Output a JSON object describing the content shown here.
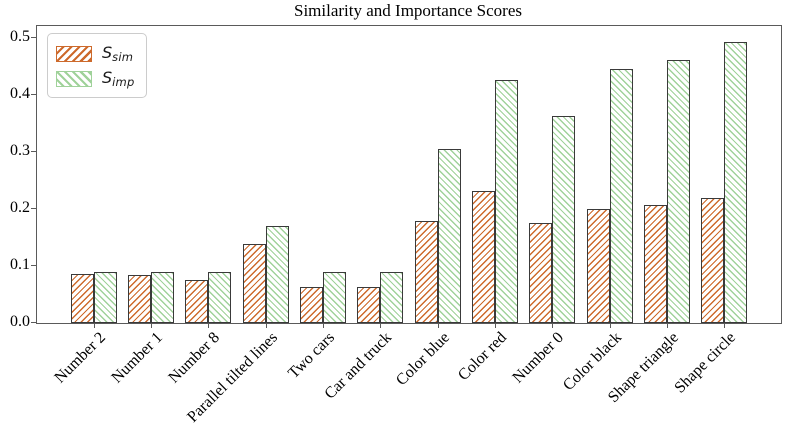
{
  "chart_data": {
    "type": "bar",
    "title": "Similarity and Importance Scores",
    "categories": [
      "Number 2",
      "Number 1",
      "Number 8",
      "Parallel tilted lines",
      "Two cars",
      "Car and truck",
      "Color blue",
      "Color red",
      "Number 0",
      "Color black",
      "Shape triangle",
      "Shape circle"
    ],
    "series": [
      {
        "name": "S_sim",
        "label_base": "S",
        "label_sub": "sim",
        "color": "#cd6a2c",
        "hatch": "/",
        "values": [
          0.085,
          0.084,
          0.076,
          0.139,
          0.063,
          0.063,
          0.178,
          0.231,
          0.175,
          0.2,
          0.206,
          0.219
        ]
      },
      {
        "name": "S_imp",
        "label_base": "S",
        "label_sub": "imp",
        "color": "#a0d29a",
        "hatch": "\\",
        "values": [
          0.09,
          0.09,
          0.09,
          0.17,
          0.09,
          0.09,
          0.305,
          0.426,
          0.362,
          0.444,
          0.46,
          0.492
        ]
      }
    ],
    "xlabel": "",
    "ylabel": "",
    "ylim": [
      0,
      0.52
    ],
    "yticks": [
      "0.0",
      "0.1",
      "0.2",
      "0.3",
      "0.4",
      "0.5"
    ],
    "ytick_values": [
      0.0,
      0.1,
      0.2,
      0.3,
      0.4,
      0.5
    ],
    "grid": false,
    "legend_position": "upper left",
    "bar_edge_color": "#3a3a3a",
    "axis_color": "#5a5a5a"
  }
}
